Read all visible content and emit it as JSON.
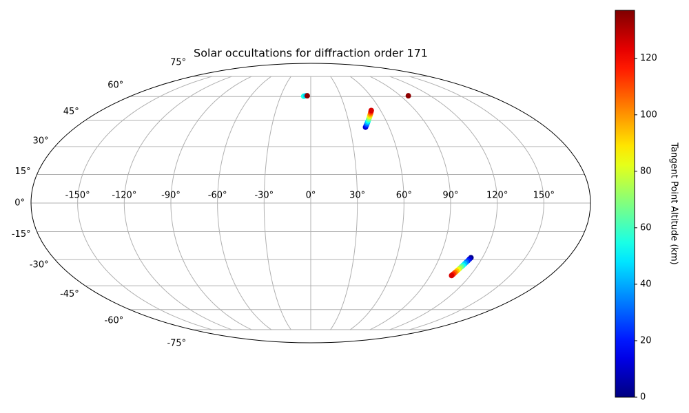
{
  "chart_data": {
    "type": "scatter",
    "projection": "mollweide",
    "title": "Solar occultations for diffraction order 171",
    "x": [
      42,
      42.9,
      43.8,
      44.7,
      45.6,
      46.5,
      47.5,
      48.4,
      49.3,
      50.2,
      51.1,
      52,
      112,
      111.5,
      111,
      110.5,
      110,
      109.5,
      109,
      108.5,
      108,
      107.5,
      107,
      106.5,
      106,
      -7,
      -5,
      -3.5,
      98
    ],
    "y": [
      41,
      41.9,
      42.8,
      43.7,
      44.6,
      45.5,
      46.5,
      47.4,
      48.3,
      49.2,
      50.1,
      51,
      -29,
      -29.8,
      -30.7,
      -31.5,
      -32.3,
      -33.2,
      -34,
      -34.8,
      -35.7,
      -36.5,
      -37.3,
      -38.2,
      -39,
      60.2,
      60.5,
      60.5,
      60.5
    ],
    "values": [
      10,
      20,
      31,
      41,
      52,
      62,
      73,
      83,
      94,
      104,
      115,
      125,
      2,
      12,
      22,
      33,
      43,
      53,
      64,
      74,
      84,
      94,
      105,
      115,
      125,
      55,
      45,
      135,
      135
    ],
    "colormap": "jet",
    "clim": [
      0,
      137
    ],
    "cticks": [
      0,
      20,
      40,
      60,
      80,
      100,
      120
    ],
    "colorbar_label": "Tangent Point Altitude (km)",
    "xticks": [
      {
        "value": -150,
        "label": "-150°"
      },
      {
        "value": -120,
        "label": "-120°"
      },
      {
        "value": -90,
        "label": "-90°"
      },
      {
        "value": -60,
        "label": "-60°"
      },
      {
        "value": -30,
        "label": "-30°"
      },
      {
        "value": 0,
        "label": "0°"
      },
      {
        "value": 30,
        "label": "30°"
      },
      {
        "value": 60,
        "label": "60°"
      },
      {
        "value": 90,
        "label": "90°"
      },
      {
        "value": 120,
        "label": "120°"
      },
      {
        "value": 150,
        "label": "150°"
      }
    ],
    "yticks": [
      {
        "value": -75,
        "label": "-75°"
      },
      {
        "value": -60,
        "label": "-60°"
      },
      {
        "value": -45,
        "label": "-45°"
      },
      {
        "value": -30,
        "label": "-30°"
      },
      {
        "value": -15,
        "label": "-15°"
      },
      {
        "value": 0,
        "label": "0°"
      },
      {
        "value": 15,
        "label": "15°"
      },
      {
        "value": 30,
        "label": "30°"
      },
      {
        "value": 45,
        "label": "45°"
      },
      {
        "value": 60,
        "label": "60°"
      },
      {
        "value": 75,
        "label": "75°"
      }
    ],
    "grid": true
  }
}
